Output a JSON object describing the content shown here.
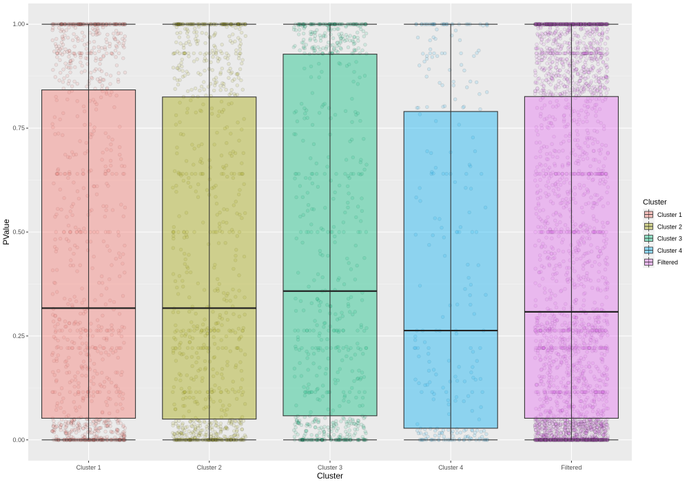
{
  "chart_data": {
    "type": "boxplot",
    "xlabel": "Cluster",
    "ylabel": "PValue",
    "ylim": [
      -0.05,
      1.05
    ],
    "yticks": [
      0.0,
      0.25,
      0.5,
      0.75,
      1.0
    ],
    "ytick_labels": [
      "0.00",
      "0.25",
      "0.50",
      "0.75",
      "1.00"
    ],
    "grid": true,
    "categories": [
      "Cluster 1",
      "Cluster 2",
      "Cluster 3",
      "Cluster 4",
      "Filtered"
    ],
    "series": [
      {
        "name": "Cluster 1",
        "color": "#F8766D",
        "whisker_low": 0.0,
        "q1": 0.052,
        "median": 0.317,
        "q3": 0.842,
        "whisker_high": 1.0,
        "point_density": 1.0
      },
      {
        "name": "Cluster 2",
        "color": "#A3A500",
        "whisker_low": 0.0,
        "q1": 0.05,
        "median": 0.317,
        "q3": 0.825,
        "whisker_high": 1.0,
        "point_density": 0.9
      },
      {
        "name": "Cluster 3",
        "color": "#00BF7D",
        "whisker_low": 0.0,
        "q1": 0.058,
        "median": 0.358,
        "q3": 0.928,
        "whisker_high": 1.0,
        "point_density": 0.7
      },
      {
        "name": "Cluster 4",
        "color": "#00B0F6",
        "whisker_low": 0.0,
        "q1": 0.028,
        "median": 0.263,
        "q3": 0.79,
        "whisker_high": 1.0,
        "point_density": 0.25
      },
      {
        "name": "Filtered",
        "color": "#E76BF3",
        "whisker_low": 0.0,
        "q1": 0.052,
        "median": 0.308,
        "q3": 0.826,
        "whisker_high": 1.0,
        "point_density": 3.0
      }
    ],
    "legend": {
      "title": "Cluster",
      "placement": "right",
      "entries": [
        "Cluster 1",
        "Cluster 2",
        "Cluster 3",
        "Cluster 4",
        "Filtered"
      ]
    }
  }
}
